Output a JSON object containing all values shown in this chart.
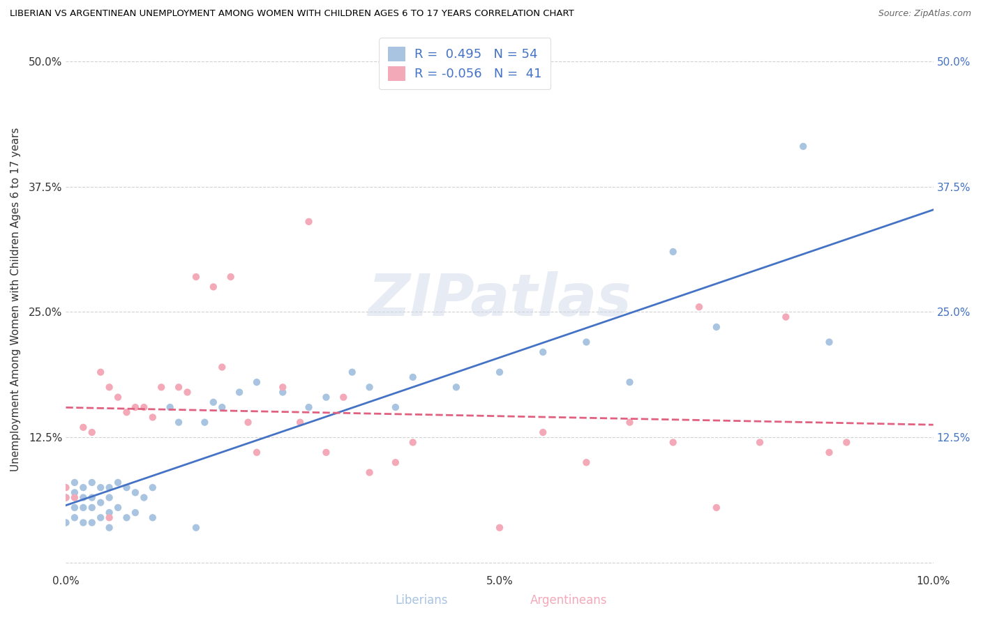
{
  "title": "LIBERIAN VS ARGENTINEAN UNEMPLOYMENT AMONG WOMEN WITH CHILDREN AGES 6 TO 17 YEARS CORRELATION CHART",
  "source": "Source: ZipAtlas.com",
  "ylabel": "Unemployment Among Women with Children Ages 6 to 17 years",
  "xlim": [
    0.0,
    0.1
  ],
  "ylim": [
    -0.01,
    0.535
  ],
  "xticks": [
    0.0,
    0.025,
    0.05,
    0.075,
    0.1
  ],
  "xtick_labels": [
    "0.0%",
    "",
    "5.0%",
    "",
    "10.0%"
  ],
  "ytick_positions": [
    0.0,
    0.125,
    0.25,
    0.375,
    0.5
  ],
  "ytick_labels_left": [
    "",
    "12.5%",
    "25.0%",
    "37.5%",
    "50.0%"
  ],
  "ytick_labels_right": [
    "",
    "12.5%",
    "25.0%",
    "37.5%",
    "50.0%"
  ],
  "liberian_R": 0.495,
  "liberian_N": 54,
  "argentinean_R": -0.056,
  "argentinean_N": 41,
  "liberian_color": "#a8c4e0",
  "argentinean_color": "#f4a9b8",
  "liberian_line_color": "#4472c4",
  "argentinean_line_color": "#e06080",
  "background_color": "#ffffff",
  "grid_color": "#cccccc",
  "watermark_zip": "ZIP",
  "watermark_atlas": "atlas",
  "legend_label_color": "#4472c4",
  "liberian_x": [
    0.0,
    0.0,
    0.001,
    0.001,
    0.001,
    0.001,
    0.002,
    0.002,
    0.002,
    0.002,
    0.003,
    0.003,
    0.003,
    0.003,
    0.004,
    0.004,
    0.004,
    0.005,
    0.005,
    0.005,
    0.005,
    0.006,
    0.006,
    0.007,
    0.007,
    0.008,
    0.008,
    0.009,
    0.01,
    0.01,
    0.012,
    0.013,
    0.015,
    0.016,
    0.017,
    0.018,
    0.02,
    0.022,
    0.025,
    0.028,
    0.03,
    0.033,
    0.035,
    0.038,
    0.04,
    0.045,
    0.05,
    0.055,
    0.06,
    0.065,
    0.07,
    0.075,
    0.085,
    0.088
  ],
  "liberian_y": [
    0.04,
    0.065,
    0.045,
    0.055,
    0.07,
    0.08,
    0.04,
    0.055,
    0.065,
    0.075,
    0.04,
    0.055,
    0.065,
    0.08,
    0.045,
    0.06,
    0.075,
    0.035,
    0.05,
    0.065,
    0.075,
    0.055,
    0.08,
    0.045,
    0.075,
    0.05,
    0.07,
    0.065,
    0.045,
    0.075,
    0.155,
    0.14,
    0.035,
    0.14,
    0.16,
    0.155,
    0.17,
    0.18,
    0.17,
    0.155,
    0.165,
    0.19,
    0.175,
    0.155,
    0.185,
    0.175,
    0.19,
    0.21,
    0.22,
    0.18,
    0.31,
    0.235,
    0.415,
    0.22
  ],
  "argentinean_x": [
    0.0,
    0.0,
    0.001,
    0.002,
    0.003,
    0.004,
    0.005,
    0.005,
    0.006,
    0.007,
    0.008,
    0.009,
    0.01,
    0.011,
    0.013,
    0.014,
    0.015,
    0.017,
    0.018,
    0.019,
    0.021,
    0.022,
    0.025,
    0.027,
    0.028,
    0.03,
    0.032,
    0.035,
    0.038,
    0.04,
    0.05,
    0.055,
    0.06,
    0.065,
    0.07,
    0.073,
    0.075,
    0.08,
    0.083,
    0.088,
    0.09
  ],
  "argentinean_y": [
    0.065,
    0.075,
    0.065,
    0.135,
    0.13,
    0.19,
    0.045,
    0.175,
    0.165,
    0.15,
    0.155,
    0.155,
    0.145,
    0.175,
    0.175,
    0.17,
    0.285,
    0.275,
    0.195,
    0.285,
    0.14,
    0.11,
    0.175,
    0.14,
    0.34,
    0.11,
    0.165,
    0.09,
    0.1,
    0.12,
    0.035,
    0.13,
    0.1,
    0.14,
    0.12,
    0.255,
    0.055,
    0.12,
    0.245,
    0.11,
    0.12
  ]
}
